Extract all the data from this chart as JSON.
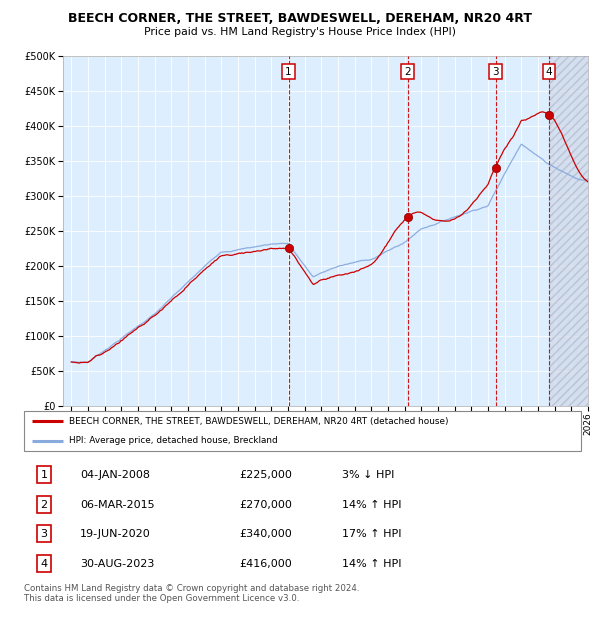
{
  "title": "BEECH CORNER, THE STREET, BAWDESWELL, DEREHAM, NR20 4RT",
  "subtitle": "Price paid vs. HM Land Registry's House Price Index (HPI)",
  "x_start_year": 1995,
  "x_end_year": 2026,
  "y_min": 0,
  "y_max": 500000,
  "y_ticks": [
    0,
    50000,
    100000,
    150000,
    200000,
    250000,
    300000,
    350000,
    400000,
    450000,
    500000
  ],
  "y_tick_labels": [
    "£0",
    "£50K",
    "£100K",
    "£150K",
    "£200K",
    "£250K",
    "£300K",
    "£350K",
    "£400K",
    "£450K",
    "£500K"
  ],
  "sale_color": "#cc0000",
  "hpi_color": "#88aadd",
  "sale_label": "BEECH CORNER, THE STREET, BAWDESWELL, DEREHAM, NR20 4RT (detached house)",
  "hpi_label": "HPI: Average price, detached house, Breckland",
  "bg_color": "#ddeeff",
  "transactions": [
    {
      "id": 1,
      "date": "04-JAN-2008",
      "year": 2008.03,
      "price": 225000,
      "hpi_rel": "3% ↓ HPI"
    },
    {
      "id": 2,
      "date": "06-MAR-2015",
      "year": 2015.18,
      "price": 270000,
      "hpi_rel": "14% ↑ HPI"
    },
    {
      "id": 3,
      "date": "19-JUN-2020",
      "year": 2020.46,
      "price": 340000,
      "hpi_rel": "17% ↑ HPI"
    },
    {
      "id": 4,
      "date": "30-AUG-2023",
      "year": 2023.66,
      "price": 416000,
      "hpi_rel": "14% ↑ HPI"
    }
  ],
  "footer": "Contains HM Land Registry data © Crown copyright and database right 2024.\nThis data is licensed under the Open Government Licence v3.0."
}
